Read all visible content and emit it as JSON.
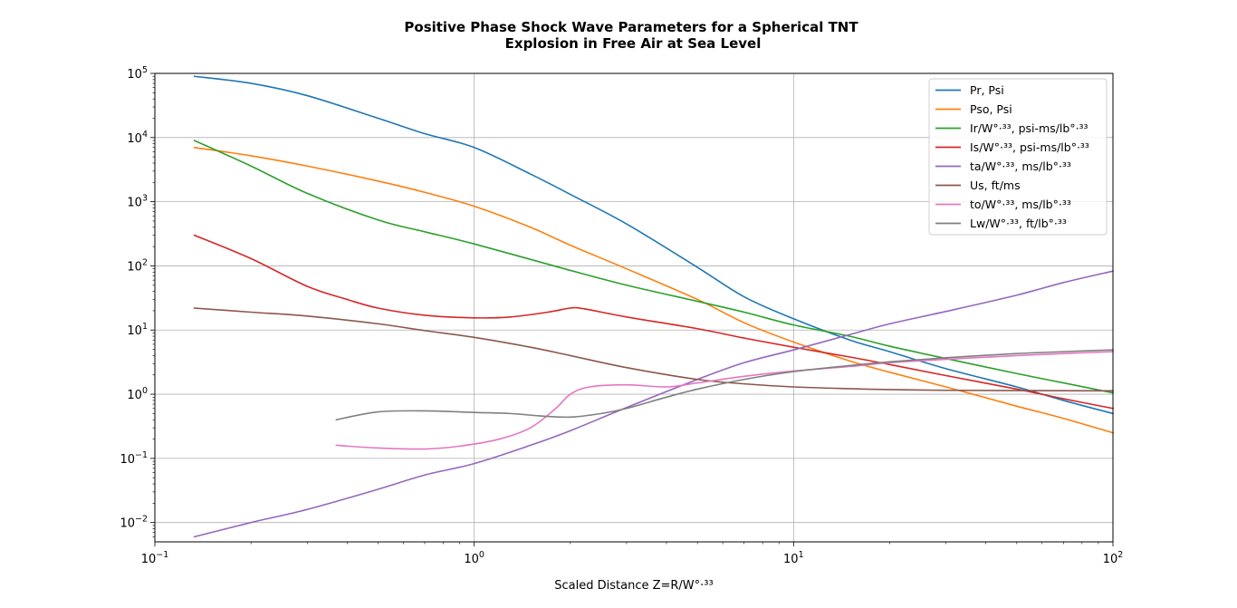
{
  "chart_data": {
    "type": "line",
    "title": [
      "Positive Phase Shock Wave Parameters for a Spherical TNT",
      "Explosion in Free Air at Sea Level"
    ],
    "xlabel": "Scaled Distance Z=R/W°·³³",
    "ylabel": "",
    "xscale": "log",
    "yscale": "log",
    "xlim": [
      0.1,
      100
    ],
    "ylim": [
      0.005,
      100000
    ],
    "grid": true,
    "legend_position": "top-right",
    "x_ticks": [
      {
        "value": 0.1,
        "base": "10",
        "exp": "−1"
      },
      {
        "value": 1,
        "base": "10",
        "exp": "0"
      },
      {
        "value": 10,
        "base": "10",
        "exp": "1"
      },
      {
        "value": 100,
        "base": "10",
        "exp": "2"
      }
    ],
    "y_ticks": [
      {
        "value": 0.01,
        "base": "10",
        "exp": "−2"
      },
      {
        "value": 0.1,
        "base": "10",
        "exp": "−1"
      },
      {
        "value": 1,
        "base": "10",
        "exp": "0"
      },
      {
        "value": 10,
        "base": "10",
        "exp": "1"
      },
      {
        "value": 100,
        "base": "10",
        "exp": "2"
      },
      {
        "value": 1000,
        "base": "10",
        "exp": "3"
      },
      {
        "value": 10000,
        "base": "10",
        "exp": "4"
      },
      {
        "value": 100000,
        "base": "10",
        "exp": "5"
      }
    ],
    "series": [
      {
        "name": "Pr, Psi",
        "color": "#1f77b4",
        "points": [
          [
            0.133,
            90000
          ],
          [
            0.2,
            70000
          ],
          [
            0.3,
            45000
          ],
          [
            0.5,
            20000
          ],
          [
            0.7,
            11500
          ],
          [
            1,
            7000
          ],
          [
            1.5,
            2700
          ],
          [
            2,
            1300
          ],
          [
            3,
            450
          ],
          [
            5,
            95
          ],
          [
            7,
            33
          ],
          [
            10,
            15
          ],
          [
            15,
            7
          ],
          [
            20,
            4.6
          ],
          [
            30,
            2.5
          ],
          [
            50,
            1.3
          ],
          [
            70,
            0.8
          ],
          [
            100,
            0.5
          ]
        ]
      },
      {
        "name": "Pso, Psi",
        "color": "#ff7f0e",
        "points": [
          [
            0.133,
            7000
          ],
          [
            0.2,
            5200
          ],
          [
            0.3,
            3600
          ],
          [
            0.5,
            2100
          ],
          [
            0.7,
            1400
          ],
          [
            1,
            850
          ],
          [
            1.5,
            400
          ],
          [
            2,
            210
          ],
          [
            3,
            90
          ],
          [
            5,
            30
          ],
          [
            7,
            13
          ],
          [
            10,
            6.5
          ],
          [
            15,
            3.3
          ],
          [
            20,
            2.2
          ],
          [
            30,
            1.3
          ],
          [
            50,
            0.65
          ],
          [
            70,
            0.42
          ],
          [
            100,
            0.25
          ]
        ]
      },
      {
        "name": "Ir/W°·³³, psi-ms/lb°·³³",
        "color": "#2ca02c",
        "points": [
          [
            0.133,
            9000
          ],
          [
            0.2,
            3600
          ],
          [
            0.3,
            1350
          ],
          [
            0.5,
            520
          ],
          [
            0.7,
            340
          ],
          [
            1,
            220
          ],
          [
            2,
            85
          ],
          [
            3,
            50
          ],
          [
            5,
            28
          ],
          [
            7,
            19
          ],
          [
            10,
            12
          ],
          [
            15,
            8
          ],
          [
            20,
            5.6
          ],
          [
            30,
            3.6
          ],
          [
            50,
            2.1
          ],
          [
            70,
            1.5
          ],
          [
            100,
            1.05
          ]
        ]
      },
      {
        "name": "Is/W°·³³, psi-ms/lb°·³³",
        "color": "#d62728",
        "points": [
          [
            0.133,
            300
          ],
          [
            0.2,
            130
          ],
          [
            0.3,
            48
          ],
          [
            0.4,
            30
          ],
          [
            0.5,
            22
          ],
          [
            0.7,
            17
          ],
          [
            1,
            15.5
          ],
          [
            1.3,
            16
          ],
          [
            1.7,
            19
          ],
          [
            2,
            22
          ],
          [
            2.2,
            21.5
          ],
          [
            3,
            16
          ],
          [
            5,
            10.5
          ],
          [
            7,
            7.5
          ],
          [
            10,
            5.4
          ],
          [
            15,
            3.8
          ],
          [
            20,
            2.9
          ],
          [
            30,
            1.95
          ],
          [
            50,
            1.2
          ],
          [
            70,
            0.85
          ],
          [
            100,
            0.6
          ]
        ]
      },
      {
        "name": "ta/W°·³³, ms/lb°·³³",
        "color": "#9467bd",
        "points": [
          [
            0.133,
            0.006
          ],
          [
            0.2,
            0.01
          ],
          [
            0.3,
            0.016
          ],
          [
            0.5,
            0.033
          ],
          [
            0.7,
            0.055
          ],
          [
            1,
            0.083
          ],
          [
            1.5,
            0.16
          ],
          [
            2,
            0.27
          ],
          [
            3,
            0.62
          ],
          [
            5,
            1.7
          ],
          [
            7,
            3.1
          ],
          [
            10,
            4.9
          ],
          [
            15,
            8.5
          ],
          [
            20,
            12.5
          ],
          [
            30,
            19.5
          ],
          [
            50,
            35
          ],
          [
            70,
            55
          ],
          [
            100,
            83
          ]
        ]
      },
      {
        "name": "Us, ft/ms",
        "color": "#8c564b",
        "points": [
          [
            0.133,
            22
          ],
          [
            0.2,
            19
          ],
          [
            0.3,
            16.5
          ],
          [
            0.5,
            12.5
          ],
          [
            0.7,
            9.8
          ],
          [
            1,
            7.7
          ],
          [
            1.5,
            5.4
          ],
          [
            2,
            4.0
          ],
          [
            3,
            2.6
          ],
          [
            5,
            1.7
          ],
          [
            7,
            1.45
          ],
          [
            10,
            1.3
          ],
          [
            15,
            1.22
          ],
          [
            20,
            1.18
          ],
          [
            30,
            1.15
          ],
          [
            50,
            1.14
          ],
          [
            100,
            1.13
          ]
        ]
      },
      {
        "name": "to/W°·³³, ms/lb°·³³",
        "color": "#e377c2",
        "points": [
          [
            0.37,
            0.16
          ],
          [
            0.5,
            0.145
          ],
          [
            0.7,
            0.14
          ],
          [
            0.9,
            0.155
          ],
          [
            1.2,
            0.2
          ],
          [
            1.5,
            0.3
          ],
          [
            1.8,
            0.6
          ],
          [
            2,
            1.0
          ],
          [
            2.3,
            1.3
          ],
          [
            3,
            1.4
          ],
          [
            4,
            1.3
          ],
          [
            5,
            1.5
          ],
          [
            7,
            1.9
          ],
          [
            10,
            2.3
          ],
          [
            15,
            2.7
          ],
          [
            20,
            3.1
          ],
          [
            30,
            3.5
          ],
          [
            50,
            4.0
          ],
          [
            70,
            4.3
          ],
          [
            100,
            4.6
          ]
        ]
      },
      {
        "name": "Lw/W°·³³, ft/lb°·³³",
        "color": "#7f7f7f",
        "points": [
          [
            0.37,
            0.4
          ],
          [
            0.5,
            0.53
          ],
          [
            0.7,
            0.55
          ],
          [
            1,
            0.52
          ],
          [
            1.3,
            0.5
          ],
          [
            1.6,
            0.46
          ],
          [
            2,
            0.44
          ],
          [
            2.5,
            0.5
          ],
          [
            3,
            0.6
          ],
          [
            4,
            0.9
          ],
          [
            5,
            1.2
          ],
          [
            7,
            1.7
          ],
          [
            10,
            2.25
          ],
          [
            15,
            2.8
          ],
          [
            20,
            3.2
          ],
          [
            30,
            3.7
          ],
          [
            50,
            4.3
          ],
          [
            70,
            4.6
          ],
          [
            100,
            4.9
          ]
        ]
      }
    ]
  }
}
